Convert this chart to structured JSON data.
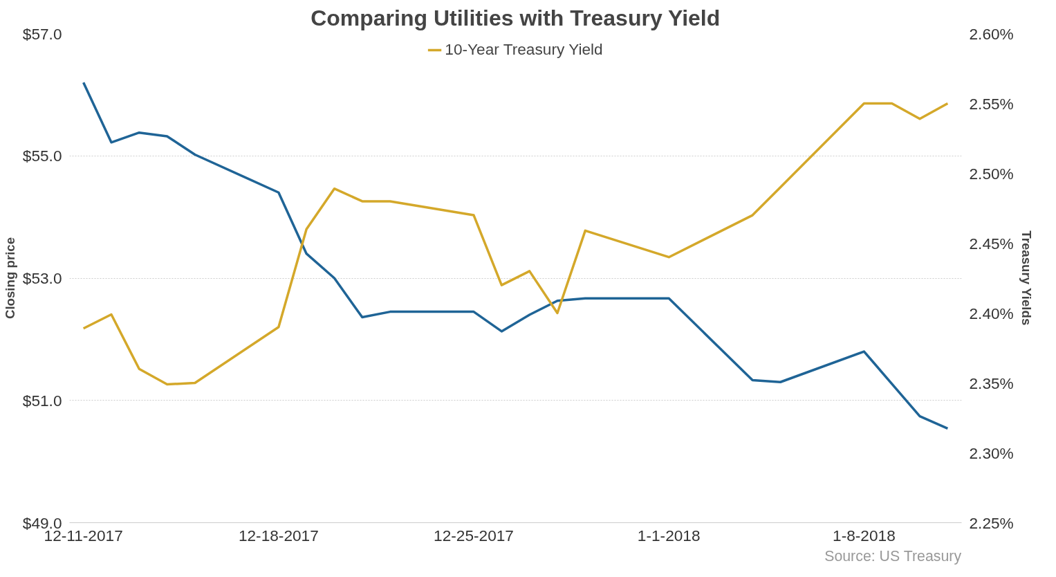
{
  "chart_data": {
    "type": "line",
    "title": "Comparing Utilities with Treasury Yield",
    "ylabel": "Closing price",
    "y2label": "Treasury Yields",
    "x": [
      "2017-12-11",
      "2017-12-12",
      "2017-12-13",
      "2017-12-14",
      "2017-12-15",
      "2017-12-18",
      "2017-12-19",
      "2017-12-20",
      "2017-12-21",
      "2017-12-22",
      "2017-12-25",
      "2017-12-26",
      "2017-12-27",
      "2017-12-28",
      "2017-12-29",
      "2018-01-01",
      "2018-01-04",
      "2018-01-05",
      "2018-01-08",
      "2018-01-09",
      "2018-01-10",
      "2018-01-11"
    ],
    "series": [
      {
        "color": "#1f6496",
        "values": [
          56.2,
          55.22,
          55.38,
          55.32,
          55.02,
          54.4,
          53.4,
          53.0,
          52.36,
          52.45,
          52.45,
          52.13,
          52.4,
          52.63,
          52.67,
          52.67,
          51.33,
          51.3,
          51.8,
          51.27,
          50.74,
          50.54
        ]
      },
      {
        "name": "10-Year Treasury Yield",
        "color": "#d4a82a",
        "axis": "y2",
        "values": [
          2.389,
          2.399,
          2.36,
          2.349,
          2.35,
          2.39,
          2.46,
          2.489,
          2.48,
          2.48,
          2.47,
          2.42,
          2.43,
          2.4,
          2.459,
          2.44,
          2.47,
          2.49,
          2.55,
          2.55,
          2.539,
          2.55
        ]
      }
    ],
    "xlim": [
      "2017-12-10T12:00",
      "2018-01-11T12:00"
    ],
    "xticks": [
      {
        "value": "2017-12-11",
        "label": "12-11-2017"
      },
      {
        "value": "2017-12-18",
        "label": "12-18-2017"
      },
      {
        "value": "2017-12-25",
        "label": "12-25-2017"
      },
      {
        "value": "2018-01-01",
        "label": "1-1-2018"
      },
      {
        "value": "2018-01-08",
        "label": "1-8-2018"
      }
    ],
    "ylim": [
      49,
      57
    ],
    "yticks": [
      {
        "value": 49,
        "label": "$49.0"
      },
      {
        "value": 51,
        "label": "$51.0"
      },
      {
        "value": 53,
        "label": "$53.0"
      },
      {
        "value": 55,
        "label": "$55.0"
      },
      {
        "value": 57,
        "label": "$57.0"
      }
    ],
    "y2lim": [
      2.25,
      2.6
    ],
    "y2ticks": [
      {
        "value": 2.25,
        "label": "2.25%"
      },
      {
        "value": 2.3,
        "label": "2.30%"
      },
      {
        "value": 2.35,
        "label": "2.35%"
      },
      {
        "value": 2.4,
        "label": "2.40%"
      },
      {
        "value": 2.45,
        "label": "2.45%"
      },
      {
        "value": 2.5,
        "label": "2.50%"
      },
      {
        "value": 2.55,
        "label": "2.55%"
      },
      {
        "value": 2.6,
        "label": "2.60%"
      }
    ],
    "grid": "y",
    "legend": "top",
    "line_style": "solid",
    "marker": "none",
    "annotations": [
      "Source: US Treasury"
    ]
  }
}
